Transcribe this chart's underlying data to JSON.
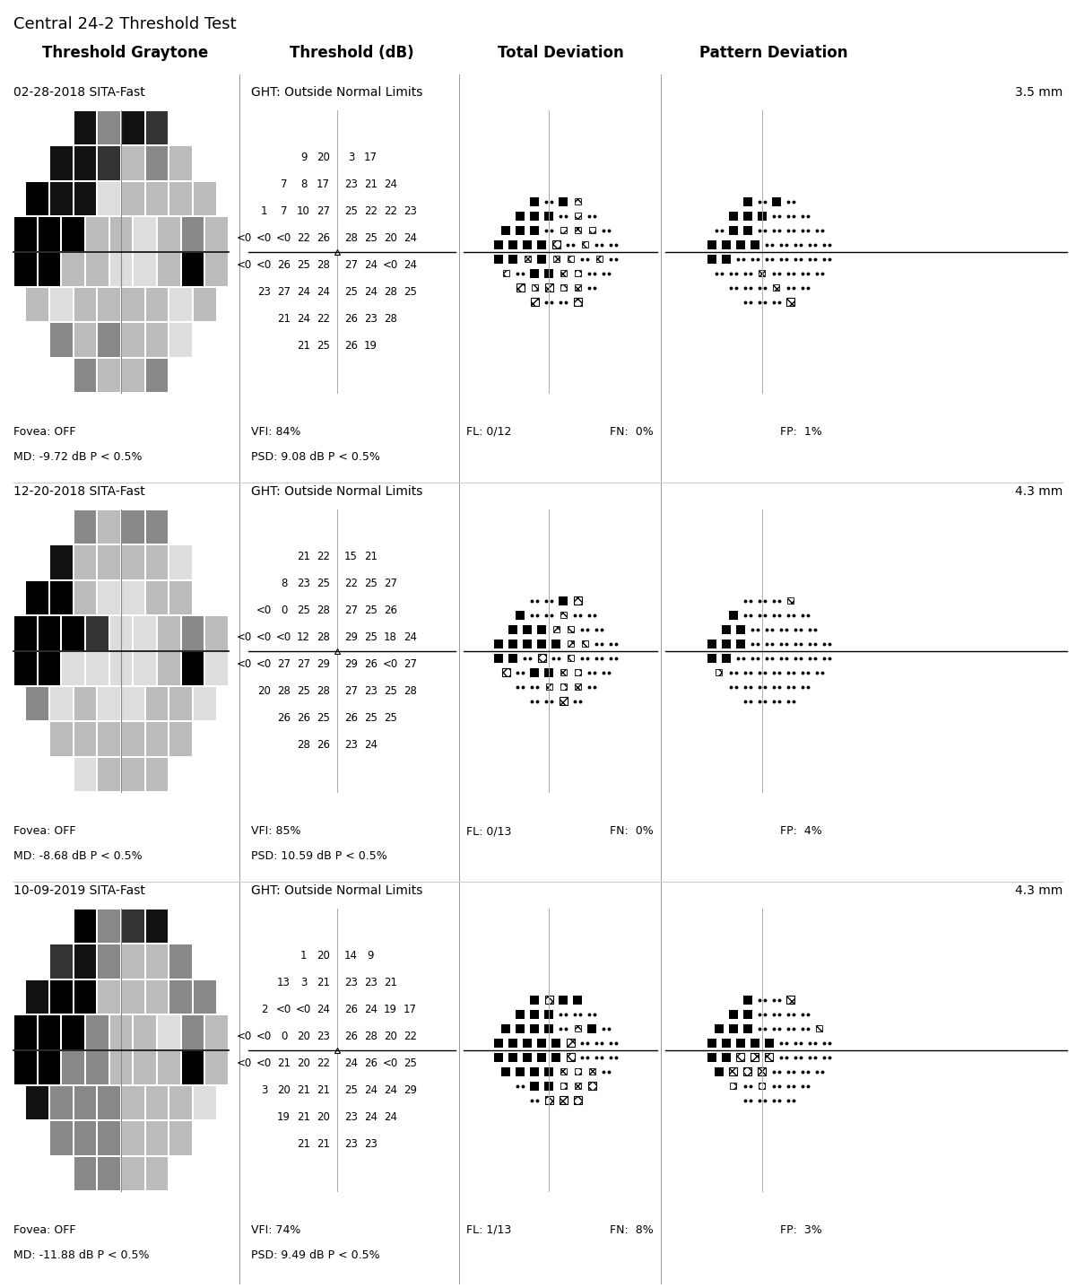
{
  "title_line1": "Central 24-2 Threshold Test",
  "col_headers": [
    "Threshold Graytone",
    "Threshold (dB)",
    "Total Deviation",
    "Pattern Deviation"
  ],
  "visits": [
    {
      "date_str": "02-28-2018 SITA-Fast",
      "ght": "GHT: Outside Normal Limits",
      "pupil": "3.5 mm",
      "fovea": "Fovea: OFF",
      "md": "MD: -9.72 dB P < 0.5%",
      "vfi": "VFI: 84%",
      "psd": "PSD: 9.08 dB P < 0.5%",
      "fl": "FL: 0/12",
      "fn": "FN:  0%",
      "fp": "FP:  1%",
      "threshold_rows_upper": [
        {
          "values": [
            "9",
            "20",
            "|",
            "3",
            "17"
          ]
        },
        {
          "values": [
            "7",
            "8",
            "17",
            "|",
            "23",
            "21",
            "24"
          ]
        },
        {
          "values": [
            "1",
            "7",
            "10",
            "27",
            "|",
            "25",
            "22",
            "22",
            "23"
          ]
        },
        {
          "values": [
            "<0",
            "<0",
            "<0",
            "22",
            "26",
            "|",
            "28",
            "25",
            "20",
            "24"
          ]
        }
      ],
      "threshold_rows_lower": [
        {
          "values": [
            "<0",
            "<0",
            "26",
            "25",
            "28",
            "|",
            "27",
            "24",
            "<0",
            "24"
          ]
        },
        {
          "values": [
            "23",
            "27",
            "24",
            "24",
            "|",
            "25",
            "24",
            "28",
            "25"
          ]
        },
        {
          "values": [
            "21",
            "24",
            "22",
            "|",
            "26",
            "23",
            "28"
          ]
        },
        {
          "values": [
            "21",
            "25",
            "|",
            "26",
            "19"
          ]
        }
      ],
      "td_upper": [
        [
          "B",
          "d",
          "B",
          "X"
        ],
        [
          "B",
          "B",
          "B",
          "d",
          "X",
          "d"
        ],
        [
          "B",
          "B",
          "B",
          "d",
          "X",
          "X",
          "X",
          "d"
        ],
        [
          "B",
          "B",
          "B",
          "B",
          "x",
          "d",
          "X",
          "d",
          "d"
        ]
      ],
      "td_lower": [
        [
          "B",
          "B",
          "X",
          "B",
          "X",
          "X",
          "d",
          "X",
          "d"
        ],
        [
          "X",
          "d",
          "B",
          "B",
          "X",
          "X",
          "d",
          "d"
        ],
        [
          "x",
          "X",
          "x",
          "X",
          "X",
          "d"
        ],
        [
          "x",
          "d",
          "d",
          "x"
        ]
      ],
      "pd_upper": [
        [
          "B",
          "d",
          "B",
          "d"
        ],
        [
          "B",
          "B",
          "B",
          "d",
          "d",
          "d"
        ],
        [
          "d",
          "B",
          "B",
          "d",
          "d",
          "d",
          "d",
          "d"
        ],
        [
          "B",
          "B",
          "B",
          "B",
          "d",
          "d",
          "d",
          "d",
          "d"
        ]
      ],
      "pd_lower": [
        [
          "B",
          "B",
          "d",
          "d",
          "d",
          "d",
          "d",
          "d",
          "d"
        ],
        [
          "d",
          "d",
          "d",
          "X",
          "d",
          "d",
          "d",
          "d"
        ],
        [
          "d",
          "d",
          "d",
          "X",
          "d",
          "d"
        ],
        [
          "d",
          "d",
          "d",
          "x"
        ]
      ]
    },
    {
      "date_str": "12-20-2018 SITA-Fast",
      "ght": "GHT: Outside Normal Limits",
      "pupil": "4.3 mm",
      "fovea": "Fovea: OFF",
      "md": "MD: -8.68 dB P < 0.5%",
      "vfi": "VFI: 85%",
      "psd": "PSD: 10.59 dB P < 0.5%",
      "fl": "FL: 0/13",
      "fn": "FN:  0%",
      "fp": "FP:  4%",
      "threshold_rows_upper": [
        {
          "values": [
            "21",
            "22",
            "|",
            "15",
            "21"
          ]
        },
        {
          "values": [
            "8",
            "23",
            "25",
            "|",
            "22",
            "25",
            "27"
          ]
        },
        {
          "values": [
            "<0",
            "0",
            "25",
            "28",
            "|",
            "27",
            "25",
            "26"
          ]
        },
        {
          "values": [
            "<0",
            "<0",
            "<0",
            "12",
            "28",
            "|",
            "29",
            "25",
            "18",
            "24"
          ]
        }
      ],
      "threshold_rows_lower": [
        {
          "values": [
            "<0",
            "<0",
            "27",
            "27",
            "29",
            "|",
            "29",
            "26",
            "<0",
            "27"
          ]
        },
        {
          "values": [
            "20",
            "28",
            "25",
            "28",
            "|",
            "27",
            "23",
            "25",
            "28"
          ]
        },
        {
          "values": [
            "26",
            "26",
            "25",
            "|",
            "26",
            "25",
            "25"
          ]
        },
        {
          "values": [
            "28",
            "26",
            "|",
            "23",
            "24"
          ]
        }
      ],
      "td_upper": [
        [
          "d",
          "d",
          "B",
          "x"
        ],
        [
          "B",
          "d",
          "d",
          "X",
          "d",
          "d"
        ],
        [
          "B",
          "B",
          "B",
          "X",
          "X",
          "d",
          "d"
        ],
        [
          "B",
          "B",
          "B",
          "B",
          "B",
          "X",
          "X",
          "d",
          "d"
        ]
      ],
      "td_lower": [
        [
          "B",
          "B",
          "d",
          "x",
          "d",
          "X",
          "d",
          "d",
          "d"
        ],
        [
          "x",
          "d",
          "B",
          "B",
          "X",
          "X",
          "d",
          "d"
        ],
        [
          "d",
          "d",
          "X",
          "X",
          "X",
          "d"
        ],
        [
          "d",
          "d",
          "x",
          "d"
        ]
      ],
      "pd_upper": [
        [
          "d",
          "d",
          "d",
          "X"
        ],
        [
          "B",
          "d",
          "d",
          "d",
          "d",
          "d"
        ],
        [
          "B",
          "B",
          "d",
          "d",
          "d",
          "d",
          "d"
        ],
        [
          "B",
          "B",
          "B",
          "d",
          "d",
          "d",
          "d",
          "d",
          "d"
        ]
      ],
      "pd_lower": [
        [
          "B",
          "B",
          "d",
          "d",
          "d",
          "d",
          "d",
          "d",
          "d"
        ],
        [
          "X",
          "d",
          "d",
          "d",
          "d",
          "d",
          "d",
          "d"
        ],
        [
          "d",
          "d",
          "d",
          "d",
          "d",
          "d"
        ],
        [
          "d",
          "d",
          "d",
          "d"
        ]
      ]
    },
    {
      "date_str": "10-09-2019 SITA-Fast",
      "ght": "GHT: Outside Normal Limits",
      "pupil": "4.3 mm",
      "fovea": "Fovea: OFF",
      "md": "MD: -11.88 dB P < 0.5%",
      "vfi": "VFI: 74%",
      "psd": "PSD: 9.49 dB P < 0.5%",
      "fl": "FL: 1/13",
      "fn": "FN:  8%",
      "fp": "FP:  3%",
      "threshold_rows_upper": [
        {
          "values": [
            "1",
            "20",
            "|",
            "14",
            "9"
          ]
        },
        {
          "values": [
            "13",
            "3",
            "21",
            "|",
            "23",
            "23",
            "21"
          ]
        },
        {
          "values": [
            "2",
            "<0",
            "<0",
            "24",
            "|",
            "26",
            "24",
            "19",
            "17"
          ]
        },
        {
          "values": [
            "<0",
            "<0",
            "0",
            "20",
            "23",
            "|",
            "26",
            "28",
            "20",
            "22"
          ]
        }
      ],
      "threshold_rows_lower": [
        {
          "values": [
            "<0",
            "<0",
            "21",
            "20",
            "22",
            "|",
            "24",
            "26",
            "<0",
            "25"
          ]
        },
        {
          "values": [
            "3",
            "20",
            "21",
            "21",
            "|",
            "25",
            "24",
            "24",
            "29"
          ]
        },
        {
          "values": [
            "19",
            "21",
            "20",
            "|",
            "23",
            "24",
            "24"
          ]
        },
        {
          "values": [
            "21",
            "21",
            "|",
            "23",
            "23"
          ]
        }
      ],
      "td_upper": [
        [
          "B",
          "x",
          "B",
          "B"
        ],
        [
          "B",
          "B",
          "B",
          "d",
          "d",
          "d"
        ],
        [
          "B",
          "B",
          "B",
          "B",
          "d",
          "X",
          "B",
          "d"
        ],
        [
          "B",
          "B",
          "B",
          "B",
          "B",
          "x",
          "d",
          "d",
          "d"
        ]
      ],
      "td_lower": [
        [
          "B",
          "B",
          "B",
          "B",
          "B",
          "x",
          "d",
          "d",
          "d"
        ],
        [
          "B",
          "B",
          "B",
          "B",
          "X",
          "X",
          "X",
          "d"
        ],
        [
          "d",
          "B",
          "B",
          "X",
          "X",
          "x"
        ],
        [
          "d",
          "x",
          "x",
          "x"
        ]
      ],
      "pd_upper": [
        [
          "B",
          "d",
          "d",
          "x"
        ],
        [
          "B",
          "B",
          "d",
          "d",
          "d",
          "d"
        ],
        [
          "B",
          "B",
          "B",
          "d",
          "d",
          "d",
          "d",
          "X"
        ],
        [
          "B",
          "B",
          "B",
          "B",
          "B",
          "d",
          "d",
          "d",
          "d"
        ]
      ],
      "pd_lower": [
        [
          "B",
          "B",
          "x",
          "x",
          "x",
          "d",
          "d",
          "d",
          "d"
        ],
        [
          "B",
          "x",
          "x",
          "x",
          "d",
          "d",
          "d",
          "d"
        ],
        [
          "X",
          "d",
          "X",
          "d",
          "d",
          "d"
        ],
        [
          "d",
          "d",
          "d",
          "d"
        ]
      ]
    }
  ]
}
